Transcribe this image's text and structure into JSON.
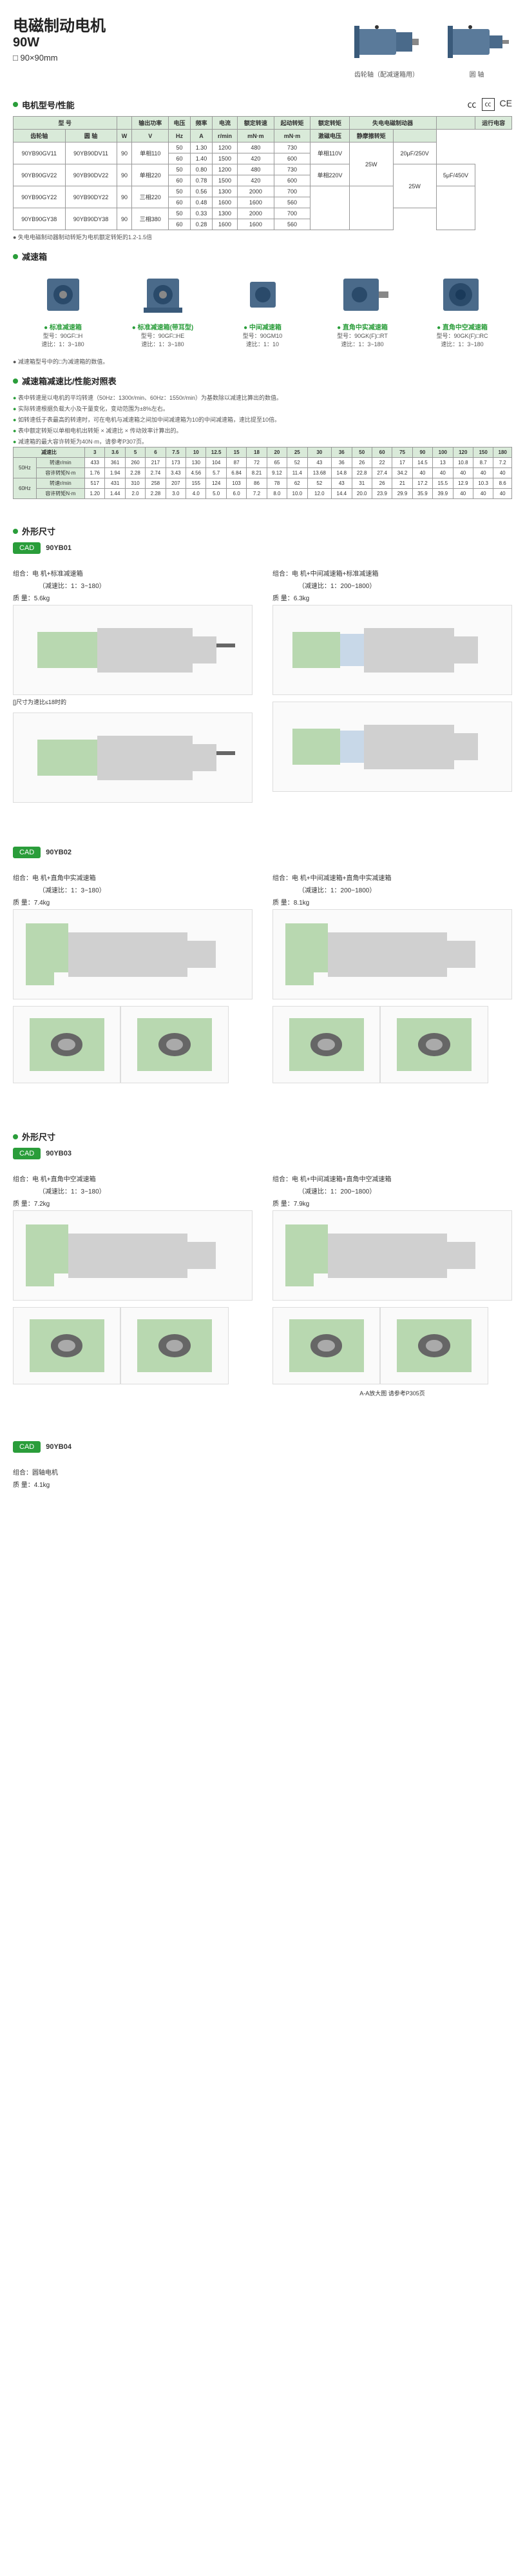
{
  "header": {
    "title": "电磁制动电机",
    "power": "90W",
    "dimension": "□ 90×90mm",
    "motor1_caption": "齿轮轴（配减速箱用）",
    "motor2_caption": "圆 轴"
  },
  "sections": {
    "spec_title": "电机型号/性能",
    "gearbox_title": "减速箱",
    "ratio_title": "减速箱减速比/性能对照表",
    "outline_title": "外形尺寸"
  },
  "spec_table": {
    "headers": [
      "型 号",
      "",
      "输出功率",
      "电压",
      "频率",
      "电流",
      "额定转速",
      "起动转矩",
      "额定转矩",
      "失电电磁制动器",
      "",
      "运行电容"
    ],
    "subheaders": [
      "齿轮轴",
      "圆 轴",
      "W",
      "V",
      "Hz",
      "A",
      "r/min",
      "mN·m",
      "mN·m",
      "激磁电压",
      "静摩擦转矩",
      ""
    ],
    "rows": [
      [
        "90YB90GV11",
        "90YB90DV11",
        "90",
        "单相110",
        "50",
        "1.30",
        "1200",
        "480",
        "730",
        "单相110V",
        "25W",
        "20μF/250V"
      ],
      [
        "",
        "",
        "",
        "",
        "60",
        "1.40",
        "1500",
        "420",
        "600",
        "",
        "",
        ""
      ],
      [
        "90YB90GV22",
        "90YB90DV22",
        "90",
        "单相220",
        "50",
        "0.80",
        "1200",
        "480",
        "730",
        "单相220V",
        "25W",
        "5μF/450V"
      ],
      [
        "",
        "",
        "",
        "",
        "60",
        "0.78",
        "1500",
        "420",
        "600",
        "",
        "",
        ""
      ],
      [
        "90YB90GY22",
        "90YB90DY22",
        "90",
        "三相220",
        "50",
        "0.56",
        "1300",
        "2000",
        "700",
        "",
        "",
        ""
      ],
      [
        "",
        "",
        "",
        "",
        "60",
        "0.48",
        "1600",
        "1600",
        "560",
        "",
        "",
        ""
      ],
      [
        "90YB90GY38",
        "90YB90DY38",
        "90",
        "三相380",
        "50",
        "0.33",
        "1300",
        "2000",
        "700",
        "",
        "",
        ""
      ],
      [
        "",
        "",
        "",
        "",
        "60",
        "0.28",
        "1600",
        "1600",
        "560",
        "",
        "",
        ""
      ]
    ]
  },
  "spec_note": "● 失电电磁制动器制动转矩为电机额定转矩的1.2-1.5倍",
  "gearboxes": [
    {
      "name": "标准减速箱",
      "model": "型号：90GF□H",
      "ratio": "速比：1：3~180"
    },
    {
      "name": "标准减速箱(带耳型)",
      "model": "型号：90GF□HE",
      "ratio": "速比：1：3~180"
    },
    {
      "name": "中间减速箱",
      "model": "型号：90GM10",
      "ratio": "速比：1：10"
    },
    {
      "name": "直角中实减速箱",
      "model": "型号：90GK(F)□RT",
      "ratio": "速比：1：3~180"
    },
    {
      "name": "直角中空减速箱",
      "model": "型号：90GK(F)□RC",
      "ratio": "速比：1：3~180"
    }
  ],
  "gearbox_note": "● 减速箱型号中的□为减速箱的数值。",
  "ratio_notes": [
    "表中转速是以电机的平均转速（50Hz：1300r/min、60Hz：1550r/min）为基数除以减速比算出的数值。",
    "实际转速根据负载大小及干量变化，变动范围为±8%左右。",
    "如转速低于表最高的转速时，可在电机与减速箱之间加中间减速箱为10的中间减速箱，速比提至10倍。",
    "表中额定转矩以单相电机出转矩 × 减速比 × 传动效率计算出的。",
    "减速箱的最大容许转矩为40N·m，请参考P307页。"
  ],
  "ratio_table": {
    "header_ratios": [
      "3",
      "3.6",
      "5",
      "6",
      "7.5",
      "10",
      "12.5",
      "15",
      "18",
      "20",
      "25",
      "30",
      "36",
      "50",
      "60",
      "75",
      "90",
      "100",
      "120",
      "150",
      "180"
    ],
    "freq_50": {
      "label": "50Hz",
      "speed_label": "转速r/min",
      "speeds": [
        "433",
        "361",
        "260",
        "217",
        "173",
        "130",
        "104",
        "87",
        "72",
        "65",
        "52",
        "43",
        "36",
        "26",
        "22",
        "17",
        "14.5",
        "13",
        "10.8",
        "8.7",
        "7.2"
      ],
      "torque_label": "容许转矩N·m",
      "torques": [
        "1.76",
        "1.94",
        "2.28",
        "2.74",
        "3.43",
        "4.56",
        "5.7",
        "6.84",
        "8.21",
        "9.12",
        "11.4",
        "13.68",
        "14.8",
        "22.8",
        "27.4",
        "34.2",
        "40",
        "40",
        "40",
        "40",
        "40"
      ]
    },
    "freq_60": {
      "label": "60Hz",
      "speed_label": "转速r/min",
      "speeds": [
        "517",
        "431",
        "310",
        "258",
        "207",
        "155",
        "124",
        "103",
        "86",
        "78",
        "62",
        "52",
        "43",
        "31",
        "26",
        "21",
        "17.2",
        "15.5",
        "12.9",
        "10.3",
        "8.6"
      ],
      "torque_label": "容许转矩N·m",
      "torques": [
        "1.20",
        "1.44",
        "2.0",
        "2.28",
        "3.0",
        "4.0",
        "5.0",
        "6.0",
        "7.2",
        "8.0",
        "10.0",
        "12.0",
        "14.4",
        "20.0",
        "23.9",
        "29.9",
        "35.9",
        "39.9",
        "40",
        "40",
        "40"
      ]
    }
  },
  "cad_sections": [
    {
      "cad": "CAD",
      "model": "90YB01",
      "left": {
        "combo_label": "组合：",
        "combo": "电 机+标准减速箱",
        "ratio_note": "（减速比：1：3~180）",
        "weight_label": "质 量：",
        "weight": "5.6kg"
      },
      "right": {
        "combo_label": "组合：",
        "combo": "电 机+中间减速箱+标准减速箱",
        "ratio_note": "（减速比：1：200~1800）",
        "weight_label": "质 量：",
        "weight": "6.3kg"
      },
      "dim_note": "[]尺寸为速比≤18时的"
    },
    {
      "cad": "CAD",
      "model": "90YB02",
      "left": {
        "combo_label": "组合：",
        "combo": "电 机+直角中实减速箱",
        "ratio_note": "（减速比：1：3~180）",
        "weight_label": "质 量：",
        "weight": "7.4kg"
      },
      "right": {
        "combo_label": "组合：",
        "combo": "电 机+中间减速箱+直角中实减速箱",
        "ratio_note": "（减速比：1：200~1800）",
        "weight_label": "质 量：",
        "weight": "8.1kg"
      }
    },
    {
      "cad": "CAD",
      "model": "90YB03",
      "left": {
        "combo_label": "组合：",
        "combo": "电 机+直角中空减速箱",
        "ratio_note": "（减速比：1：3~180）",
        "weight_label": "质 量：",
        "weight": "7.2kg"
      },
      "right": {
        "combo_label": "组合：",
        "combo": "电 机+中间减速箱+直角中空减速箱",
        "ratio_note": "（减速比：1：200~1800）",
        "weight_label": "质 量：",
        "weight": "7.9kg"
      },
      "section_note": "A-A放大图\n请参考P305页"
    },
    {
      "cad": "CAD",
      "model": "90YB04",
      "left": {
        "combo_label": "组合：",
        "combo": "圆轴电机",
        "weight_label": "质 量：",
        "weight": "4.1kg"
      }
    }
  ],
  "colors": {
    "green": "#2a9d3a",
    "header_bg": "#d9ead9",
    "drawing_green": "#b8d8b0",
    "drawing_blue": "#c8d8e8"
  }
}
